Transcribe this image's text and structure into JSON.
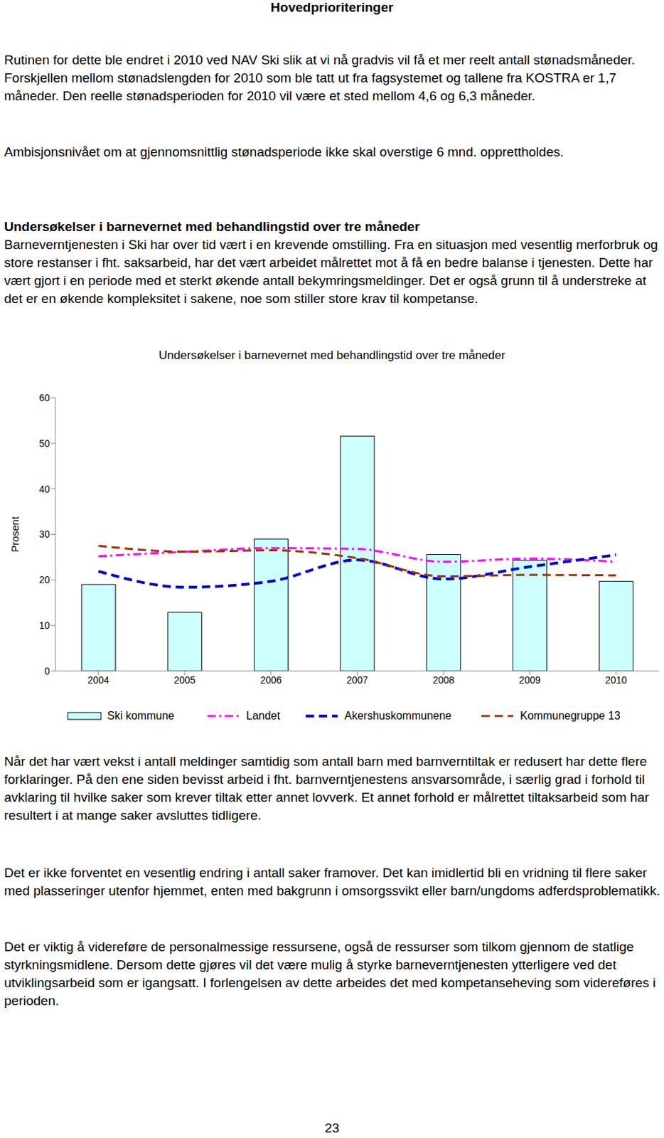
{
  "header": "Hovedprioriteringer",
  "before": [
    {
      "text": "Rutinen for dette ble endret i 2010 ved NAV Ski slik at vi nå gradvis vil få et mer reelt antall stønadsmåneder. Forskjellen mellom stønadslengden for 2010 som ble tatt ut fra fagsystemet og tallene fra KOSTRA er 1,7 måneder. Den reelle stønadsperioden for 2010 vil være et sted mellom 4,6 og 6,3 måneder."
    },
    {
      "text": "Ambisjonsnivået om at gjennomsnittlig stønadsperiode ikke skal overstige 6 mnd. opprettholdes."
    },
    {
      "heading": "Undersøkelser i barnevernet med behandlingstid over tre måneder",
      "text": "Barneverntjenesten i Ski har over tid vært i en krevende omstilling. Fra en situasjon med vesentlig merforbruk og store restanser i fht. saksarbeid, har det vært arbeidet målrettet mot å få en bedre balanse i tjenesten. Dette har vært gjort i en periode med et sterkt økende antall bekymringsmeldinger. Det er også grunn til å understreke at det er en økende kompleksitet i sakene, noe som stiller store krav til kompetanse."
    }
  ],
  "chart_data": {
    "type": "bar",
    "title": "Undersøkelser i barnevernet med behandlingstid over tre måneder",
    "y_label": "Prosent",
    "categories": [
      "2004",
      "2005",
      "2006",
      "2007",
      "2008",
      "2009",
      "2010"
    ],
    "series": [
      {
        "name": "Ski kommune",
        "type": "bar",
        "color": "#ccffff",
        "values": [
          19,
          12.9,
          29,
          51.6,
          25.6,
          24.3,
          19.7
        ]
      },
      {
        "name": "Landet",
        "type": "line",
        "line_style": "dashdot",
        "color": "#ff00ff",
        "values": [
          25.2,
          26.2,
          27,
          26.8,
          24,
          24.7,
          24
        ]
      },
      {
        "name": "Akershuskommunene",
        "type": "line",
        "line_style": "dashed",
        "color": "#0000cc",
        "values": [
          21.9,
          18.4,
          19.7,
          24.4,
          20.2,
          22.9,
          25.5
        ]
      },
      {
        "name": "Kommunegruppe 13",
        "type": "line",
        "line_style": "dashed",
        "color": "#993300",
        "values": [
          27.5,
          26.2,
          26.5,
          24.8,
          20.8,
          21.1,
          21
        ]
      }
    ],
    "ylim": [
      0,
      60
    ],
    "yticks": [
      0,
      10,
      20,
      30,
      40,
      50,
      60
    ],
    "grid": false,
    "legend": "bottom"
  },
  "after": [
    {
      "text": "Når det har vært vekst i antall meldinger samtidig som antall barn med barnverntiltak er redusert har dette flere forklaringer. På den ene siden bevisst arbeid i fht. barnverntjenestens ansvarsområde, i særlig grad i forhold til avklaring til hvilke saker som krever tiltak etter annet lovverk. Et annet forhold er målrettet tiltaksarbeid som har resultert i at mange saker avsluttes tidligere."
    },
    {
      "text": "Det er ikke forventet en vesentlig endring i antall saker framover.  Det kan imidlertid bli en vridning til flere saker med plasseringer utenfor hjemmet, enten med bakgrunn i omsorgssvikt eller barn/ungdoms adferdsproblematikk."
    },
    {
      "text": "Det er viktig å videreføre de personalmessige ressursene, også de ressurser som tilkom gjennom de statlige styrkningsmidlene. Dersom dette gjøres vil det være mulig å styrke barneverntjenesten ytterligere ved det utviklingsarbeid som er igangsatt. I forlengelsen av dette arbeides det med kompetanseheving som videreføres i perioden."
    }
  ],
  "page_number": "23"
}
